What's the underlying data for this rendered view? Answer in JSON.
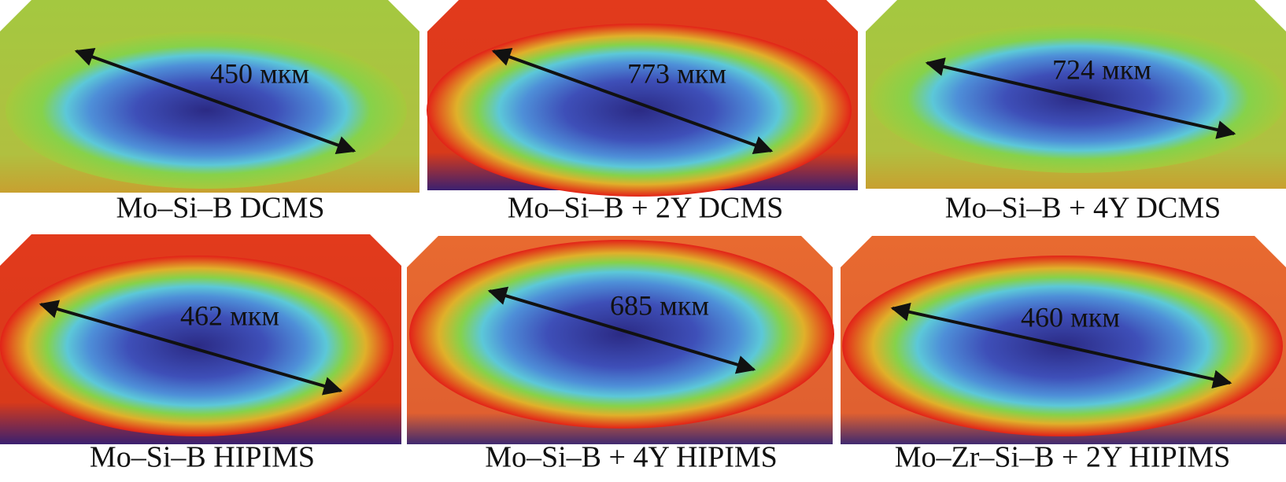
{
  "panels": [
    {
      "measurement": "450 мкм",
      "caption": "Mo–Si–B DCMS"
    },
    {
      "measurement": "773 мкм",
      "caption": "Mo–Si–B + 2Y DCMS"
    },
    {
      "measurement": "724 мкм",
      "caption": "Mo–Si–B + 4Y DCMS"
    },
    {
      "measurement": "462 мкм",
      "caption": "Mo–Si–B HIPIMS"
    },
    {
      "measurement": "685 мкм",
      "caption": "Mo–Si–B + 4Y HIPIMS"
    },
    {
      "measurement": "460 мкм",
      "caption": "Mo–Zr–Si–B + 2Y HIPIMS"
    }
  ]
}
